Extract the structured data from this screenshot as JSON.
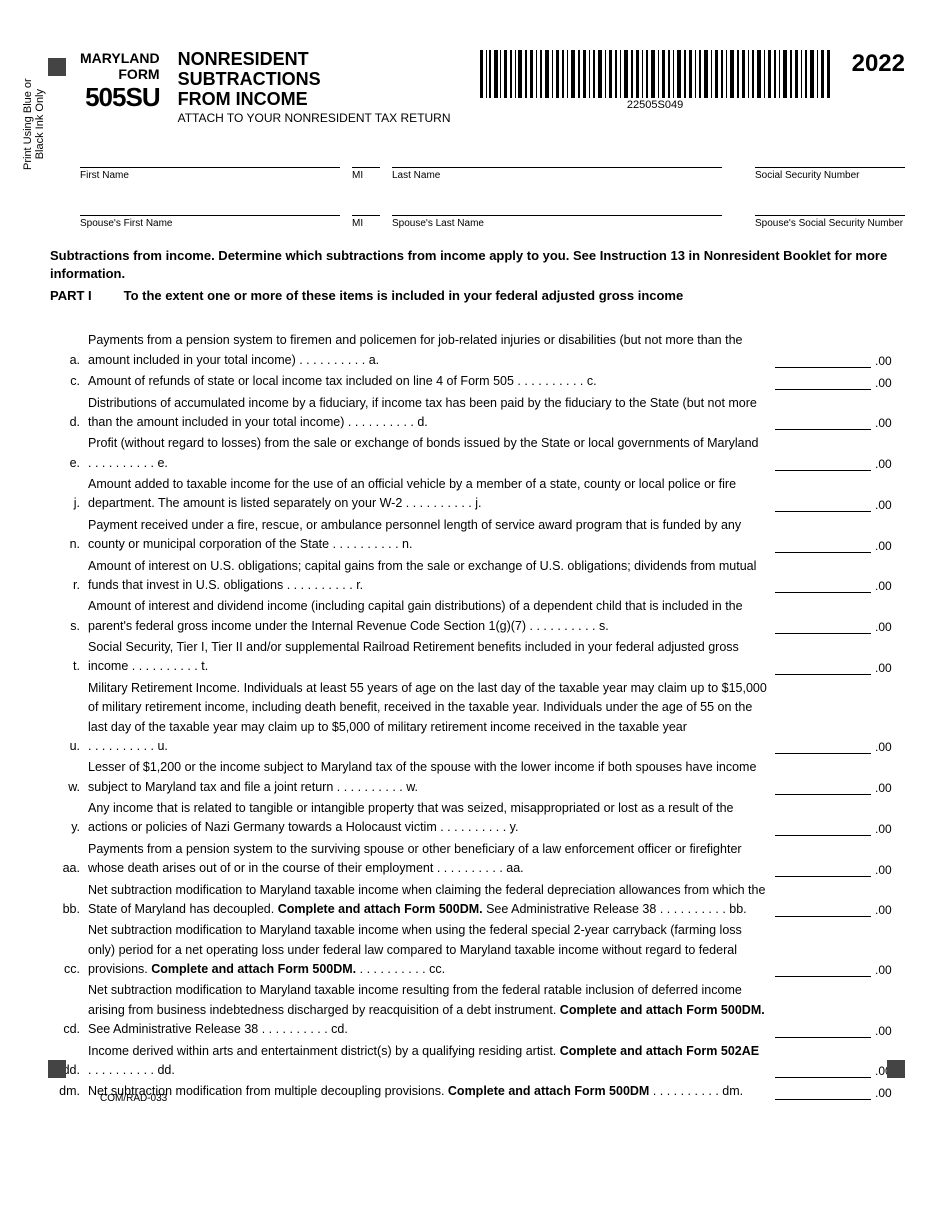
{
  "header": {
    "state": "MARYLAND",
    "form_word": "FORM",
    "form_number": "505SU",
    "title_l1": "NONRESIDENT",
    "title_l2": "SUBTRACTIONS",
    "title_l3": "FROM INCOME",
    "attach": "ATTACH TO YOUR NONRESIDENT TAX RETURN",
    "barcode_num": "22505S049",
    "year": "2022"
  },
  "side_text": "Print Using Blue or\nBlack Ink Only",
  "name_fields": {
    "first": "First Name",
    "mi": "MI",
    "last": "Last Name",
    "ssn": "Social Security Number",
    "sfirst": "Spouse's First Name",
    "smi": "MI",
    "slast": "Spouse's Last Name",
    "sssn": "Spouse's Social Security Number"
  },
  "instructions": "Subtractions from income. Determine which subtractions from income apply to you. See Instruction 13 in Nonresident Booklet for more information.",
  "part": {
    "label": "PART I",
    "text": "To the extent one or more of these items is included in your federal adjusted gross income"
  },
  "cents": ".00",
  "items": [
    {
      "k": "a.",
      "t": "Payments from a pension system to firemen and policemen for job-related injuries or disabilities (but not more than the amount included in your total income)",
      "e": "a."
    },
    {
      "k": "c.",
      "t": "Amount of refunds of state or local income tax included on line 4 of Form 505",
      "e": "c."
    },
    {
      "k": "d.",
      "t": "Distributions of accumulated income by a fiduciary, if income tax has been paid by the fiduciary to the State (but not more than the amount included in your total income)",
      "e": "d."
    },
    {
      "k": "e.",
      "t": "Profit (without regard to losses) from the sale or exchange of bonds issued by the State or local governments of Maryland ",
      "e": "e."
    },
    {
      "k": "j.",
      "t": "Amount added to taxable income for the use of an official vehicle by a member of a state, county or local police or fire department. The amount is listed separately on your W-2",
      "e": "j."
    },
    {
      "k": "n.",
      "t": "Payment received under a fire, rescue, or ambulance personnel length of service award program that is funded by any county or municipal corporation of the State",
      "e": "n."
    },
    {
      "k": "r.",
      "t": "Amount of interest on U.S. obligations; capital gains from the sale or exchange of U.S. obligations; dividends from mutual funds that invest in U.S. obligations ",
      "e": "r."
    },
    {
      "k": "s.",
      "t": "Amount of interest and dividend income (including capital gain distributions) of a dependent child that is included in the parent's federal gross income under the Internal Revenue Code Section 1(g)(7)",
      "e": "s."
    },
    {
      "k": "t.",
      "t": "Social Security, Tier I, Tier II and/or supplemental Railroad Retirement benefits included in your federal adjusted gross income ",
      "e": "t."
    },
    {
      "k": "u.",
      "t": "Military Retirement Income. Individuals at least 55 years of age on the last day of the taxable year may claim up to $15,000 of military retirement income, including death benefit, received in the taxable year. Individuals under the age of 55 on the last day of the taxable year may claim up to $5,000 of military retirement income received in the taxable year ",
      "e": "u."
    },
    {
      "k": "w.",
      "t": "Lesser of $1,200 or the income subject to Maryland tax of the spouse with the lower income if both spouses have income subject to Maryland tax and file a joint return ",
      "e": "w."
    },
    {
      "k": "y.",
      "t": "Any income that is related to tangible or intangible property that was seized, misappropriated or lost as a result of the actions or policies of Nazi Germany towards a Holocaust victim ",
      "e": "y."
    },
    {
      "k": "aa.",
      "t": "Payments from a pension system to the surviving spouse or other beneficiary of a law enforcement officer or firefighter whose death arises out of or in the course of their employment ",
      "e": "aa."
    },
    {
      "k": "bb.",
      "t": "Net subtraction modification to Maryland taxable income when claiming the federal depreciation allowances from which the State of Maryland has decoupled. <b>Complete and attach Form 500DM.</b> See Administrative Release 38 ",
      "e": "bb."
    },
    {
      "k": "cc.",
      "t": "Net subtraction modification to Maryland taxable income when using the federal special 2-year carryback (farming loss only) period for a net operating loss under federal law compared to Maryland taxable income without regard to federal provisions. <b>Complete and attach Form 500DM.</b>",
      "e": "cc."
    },
    {
      "k": "cd.",
      "t": "Net subtraction modification to Maryland taxable income resulting from the federal ratable inclusion of deferred income arising from business indebtedness discharged by reacquisition of a debt instrument. <b>Complete and attach Form 500DM.</b> See Administrative Release 38 ",
      "e": "cd."
    },
    {
      "k": "dd.",
      "t": "Income derived within arts and entertainment district(s) by a qualifying residing artist. <b>Complete and attach Form 502AE</b>",
      "e": "dd."
    },
    {
      "k": "dm.",
      "t": "Net subtraction modification from multiple decoupling provisions. <b>Complete and attach Form 500DM</b>",
      "e": "dm."
    }
  ],
  "footer": "COM/RAD-033"
}
